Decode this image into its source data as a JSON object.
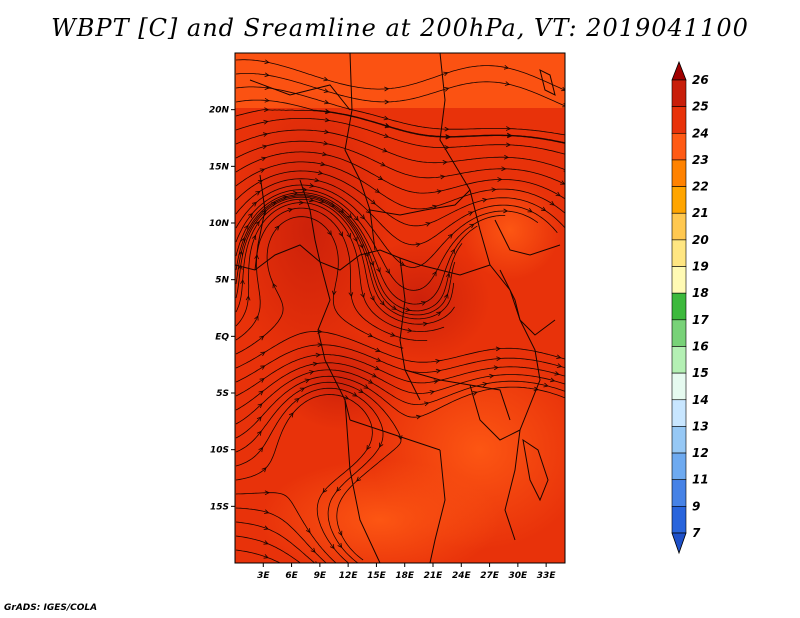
{
  "title": "WBPT [C] and Sreamline at 200hPa, VT: 2019041100",
  "credit": "GrADS: IGES/COLA",
  "map": {
    "lat_labels": [
      "20N",
      "15N",
      "10N",
      "5N",
      "EQ",
      "5S",
      "10S",
      "15S"
    ],
    "lat_values": [
      20,
      15,
      10,
      5,
      0,
      -5,
      -10,
      -15
    ],
    "lon_labels": [
      "3E",
      "6E",
      "9E",
      "12E",
      "15E",
      "18E",
      "21E",
      "24E",
      "27E",
      "30E",
      "33E"
    ],
    "lon_values": [
      3,
      6,
      9,
      12,
      15,
      18,
      21,
      24,
      27,
      30,
      33
    ],
    "lon_range": [
      0,
      35
    ],
    "lat_range": [
      -20,
      25
    ],
    "fill_colors": {
      "t23": "#ff5a14",
      "t24": "#e8320a",
      "t25": "#c81e0a"
    }
  },
  "colorbar": {
    "labels": [
      "26",
      "25",
      "24",
      "23",
      "22",
      "21",
      "20",
      "19",
      "18",
      "17",
      "16",
      "15",
      "14",
      "13",
      "12",
      "11",
      "9",
      "7"
    ],
    "colors": [
      "#a00000",
      "#c81e0a",
      "#e8320a",
      "#ff5a14",
      "#ff8200",
      "#ffa500",
      "#ffc850",
      "#ffe682",
      "#fffab4",
      "#3cb93c",
      "#78d278",
      "#b4f0b4",
      "#e6faf0",
      "#c8e6ff",
      "#96c8f5",
      "#6eaaf0",
      "#4682e6",
      "#2864dc",
      "#1e50c8"
    ]
  }
}
